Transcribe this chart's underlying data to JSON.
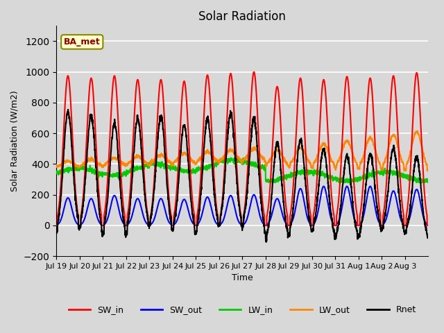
{
  "title": "Solar Radiation",
  "xlabel": "Time",
  "ylabel": "Solar Radiation (W/m2)",
  "ylim": [
    -200,
    1300
  ],
  "yticks": [
    -200,
    0,
    200,
    400,
    600,
    800,
    1000,
    1200
  ],
  "plot_bg_color": "#d8d8d8",
  "label_box_text": "BA_met",
  "label_box_facecolor": "#ffffcc",
  "label_box_edgecolor": "#888800",
  "series": {
    "SW_in": {
      "color": "#ff0000",
      "lw": 1.5,
      "zorder": 5
    },
    "SW_out": {
      "color": "#0000ff",
      "lw": 1.5,
      "zorder": 4
    },
    "LW_in": {
      "color": "#00cc00",
      "lw": 1.5,
      "zorder": 3
    },
    "LW_out": {
      "color": "#ff8800",
      "lw": 1.5,
      "zorder": 3
    },
    "Rnet": {
      "color": "#000000",
      "lw": 1.5,
      "zorder": 6
    }
  },
  "n_days": 16,
  "points_per_day": 144,
  "xtick_labels": [
    "Jul 19",
    "Jul 20",
    "Jul 21",
    "Jul 22",
    "Jul 23",
    "Jul 24",
    "Jul 25",
    "Jul 26",
    "Jul 27",
    "Jul 28",
    "Jul 29",
    "Jul 30",
    "Jul 31",
    "Aug 1",
    "Aug 2",
    "Aug 3"
  ],
  "legend_items": [
    "SW_in",
    "SW_out",
    "LW_in",
    "LW_out",
    "Rnet"
  ],
  "legend_colors": [
    "#ff0000",
    "#0000ff",
    "#00cc00",
    "#ff8800",
    "#000000"
  ]
}
